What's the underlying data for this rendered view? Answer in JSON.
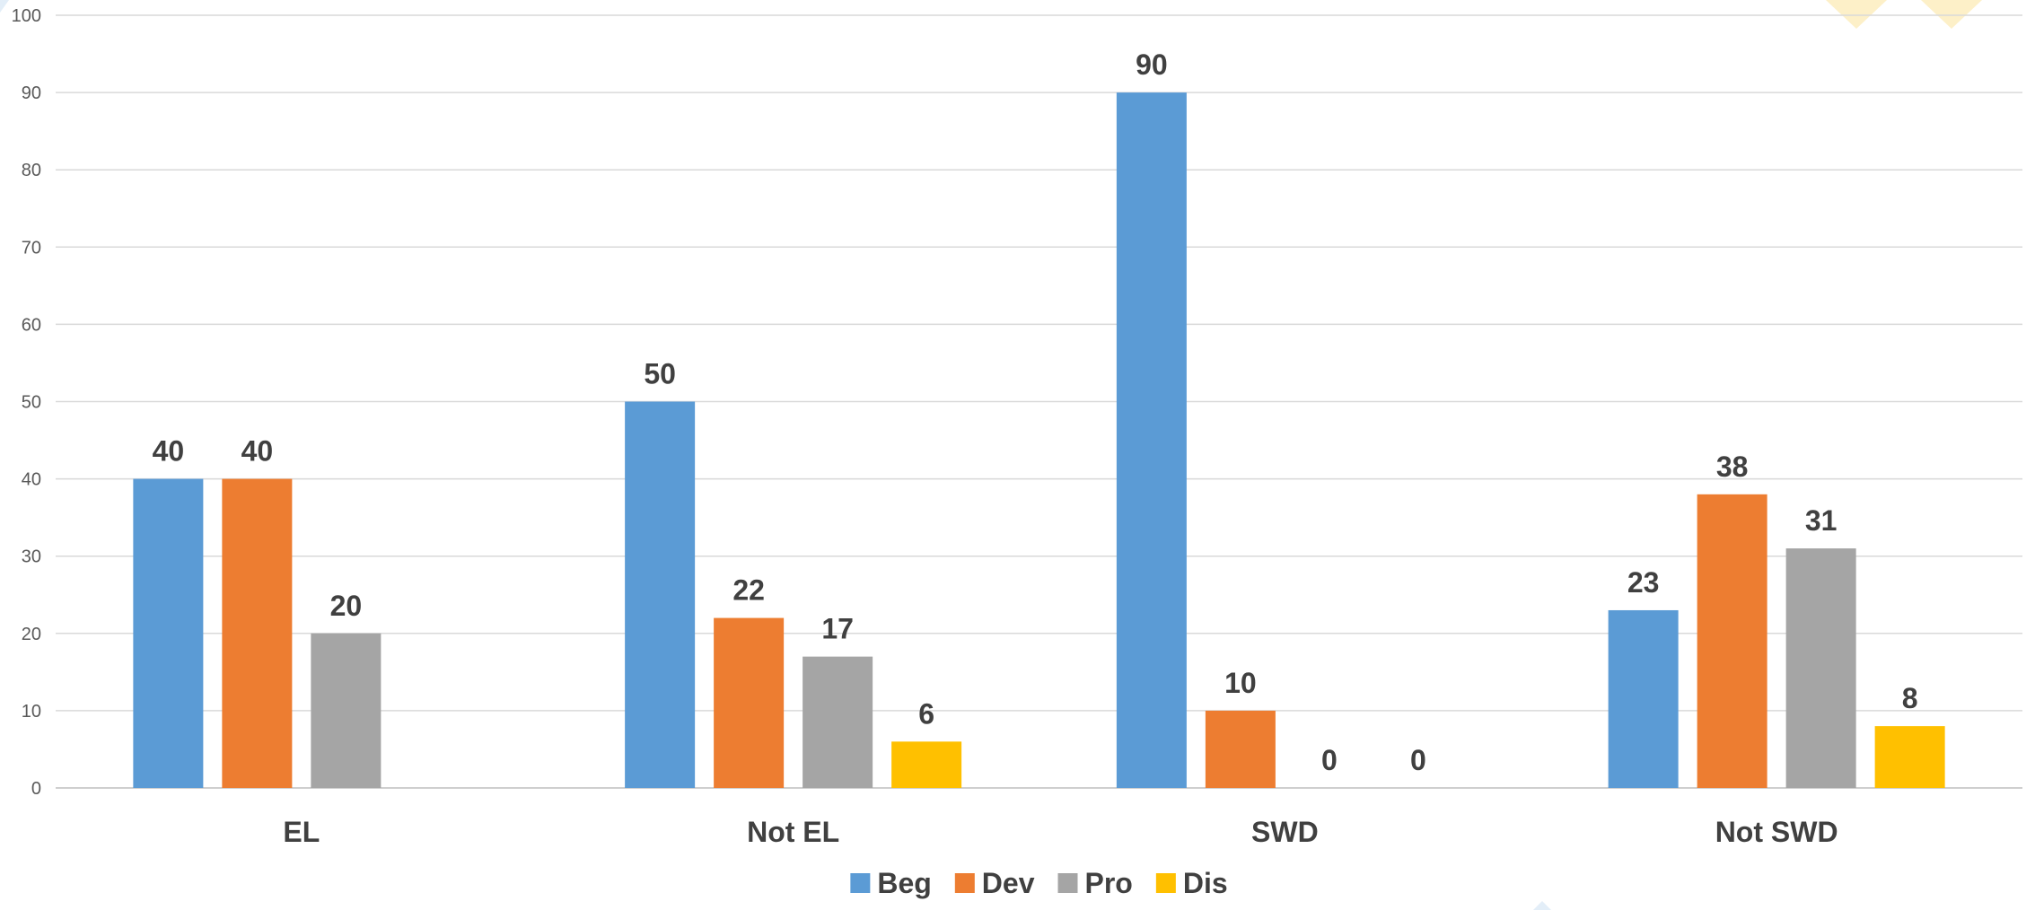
{
  "chart_data": {
    "type": "bar",
    "title": "",
    "xlabel": "",
    "ylabel": "",
    "ylim": [
      0,
      100
    ],
    "yticks": [
      0,
      10,
      20,
      30,
      40,
      50,
      60,
      70,
      80,
      90,
      100
    ],
    "grid": true,
    "legend_position": "bottom",
    "categories": [
      "EL",
      "Not EL",
      "SWD",
      "Not SWD"
    ],
    "series": [
      {
        "name": "Beg",
        "color": "#5B9BD5",
        "values": [
          40,
          50,
          90,
          23
        ],
        "labels": [
          "40",
          "50",
          "90",
          "23"
        ]
      },
      {
        "name": "Dev",
        "color": "#ED7D31",
        "values": [
          40,
          22,
          10,
          38
        ],
        "labels": [
          "40",
          "22",
          "10",
          "38"
        ]
      },
      {
        "name": "Pro",
        "color": "#A5A5A5",
        "values": [
          20,
          17,
          0,
          31
        ],
        "labels": [
          "20",
          "17",
          "0",
          "31"
        ]
      },
      {
        "name": "Dis",
        "color": "#FFC000",
        "values": [
          null,
          6,
          0,
          8
        ],
        "labels": [
          "",
          "6",
          "0",
          "8"
        ]
      }
    ]
  }
}
